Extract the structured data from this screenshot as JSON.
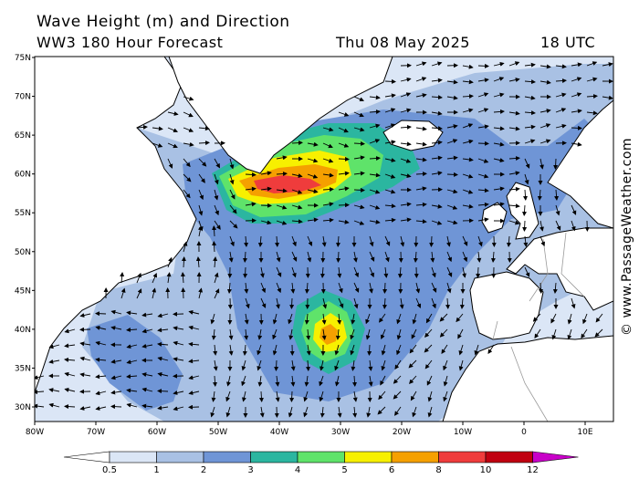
{
  "header": {
    "title": "Wave Height (m) and Direction",
    "model": "WW3 180 Hour Forecast",
    "date": "Thu 08 May 2025",
    "time": "18 UTC",
    "credit": "© www.PassageWeather.com"
  },
  "axes": {
    "lat_labels": [
      "75N",
      "70N",
      "65N",
      "60N",
      "55N",
      "50N",
      "45N",
      "40N",
      "35N",
      "30N"
    ],
    "lon_labels": [
      "80W",
      "70W",
      "60W",
      "50W",
      "40W",
      "30W",
      "20W",
      "10W",
      "0",
      "10E"
    ]
  },
  "legend": {
    "ticks": [
      "0.5",
      "1",
      "2",
      "3",
      "4",
      "5",
      "6",
      "8",
      "10",
      "12"
    ],
    "colors": [
      "#dbe6f6",
      "#a9c1e4",
      "#6f95d6",
      "#2bb6a0",
      "#5fe36a",
      "#f7f000",
      "#f5a000",
      "#ef3c3c",
      "#c00010",
      "#c800c8"
    ]
  },
  "colors": {
    "land": "#ffffff",
    "coast": "#000000",
    "border": "#999999",
    "arrow": "#000000"
  }
}
